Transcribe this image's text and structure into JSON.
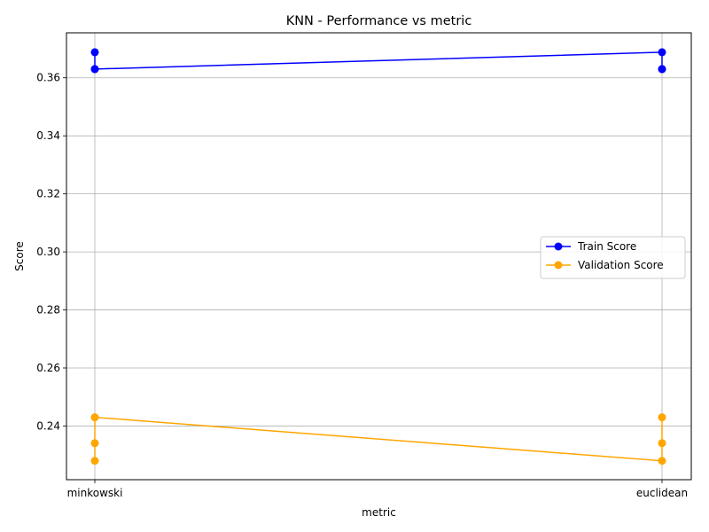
{
  "chart_data": {
    "type": "line",
    "title": "KNN - Performance vs metric",
    "xlabel": "metric",
    "ylabel": "Score",
    "categories": [
      "minkowski",
      "euclidean"
    ],
    "x": [
      "minkowski",
      "minkowski",
      "minkowski",
      "euclidean",
      "euclidean",
      "euclidean"
    ],
    "series": [
      {
        "name": "Train Score",
        "color": "#0000ff",
        "values": [
          0.3688,
          0.363,
          0.363,
          0.3688,
          0.363,
          0.363
        ]
      },
      {
        "name": "Validation Score",
        "color": "#ffa500",
        "values": [
          0.228,
          0.2341,
          0.243,
          0.228,
          0.2341,
          0.243
        ]
      }
    ],
    "ylim": [
      0.2215,
      0.3755
    ],
    "yticks": [
      "0.24",
      "0.26",
      "0.28",
      "0.30",
      "0.32",
      "0.34",
      "0.36"
    ],
    "ytick_values": [
      0.24,
      0.26,
      0.28,
      0.3,
      0.32,
      0.34,
      0.36
    ],
    "grid": true,
    "legend_position": "center-right",
    "marker": "circle"
  }
}
